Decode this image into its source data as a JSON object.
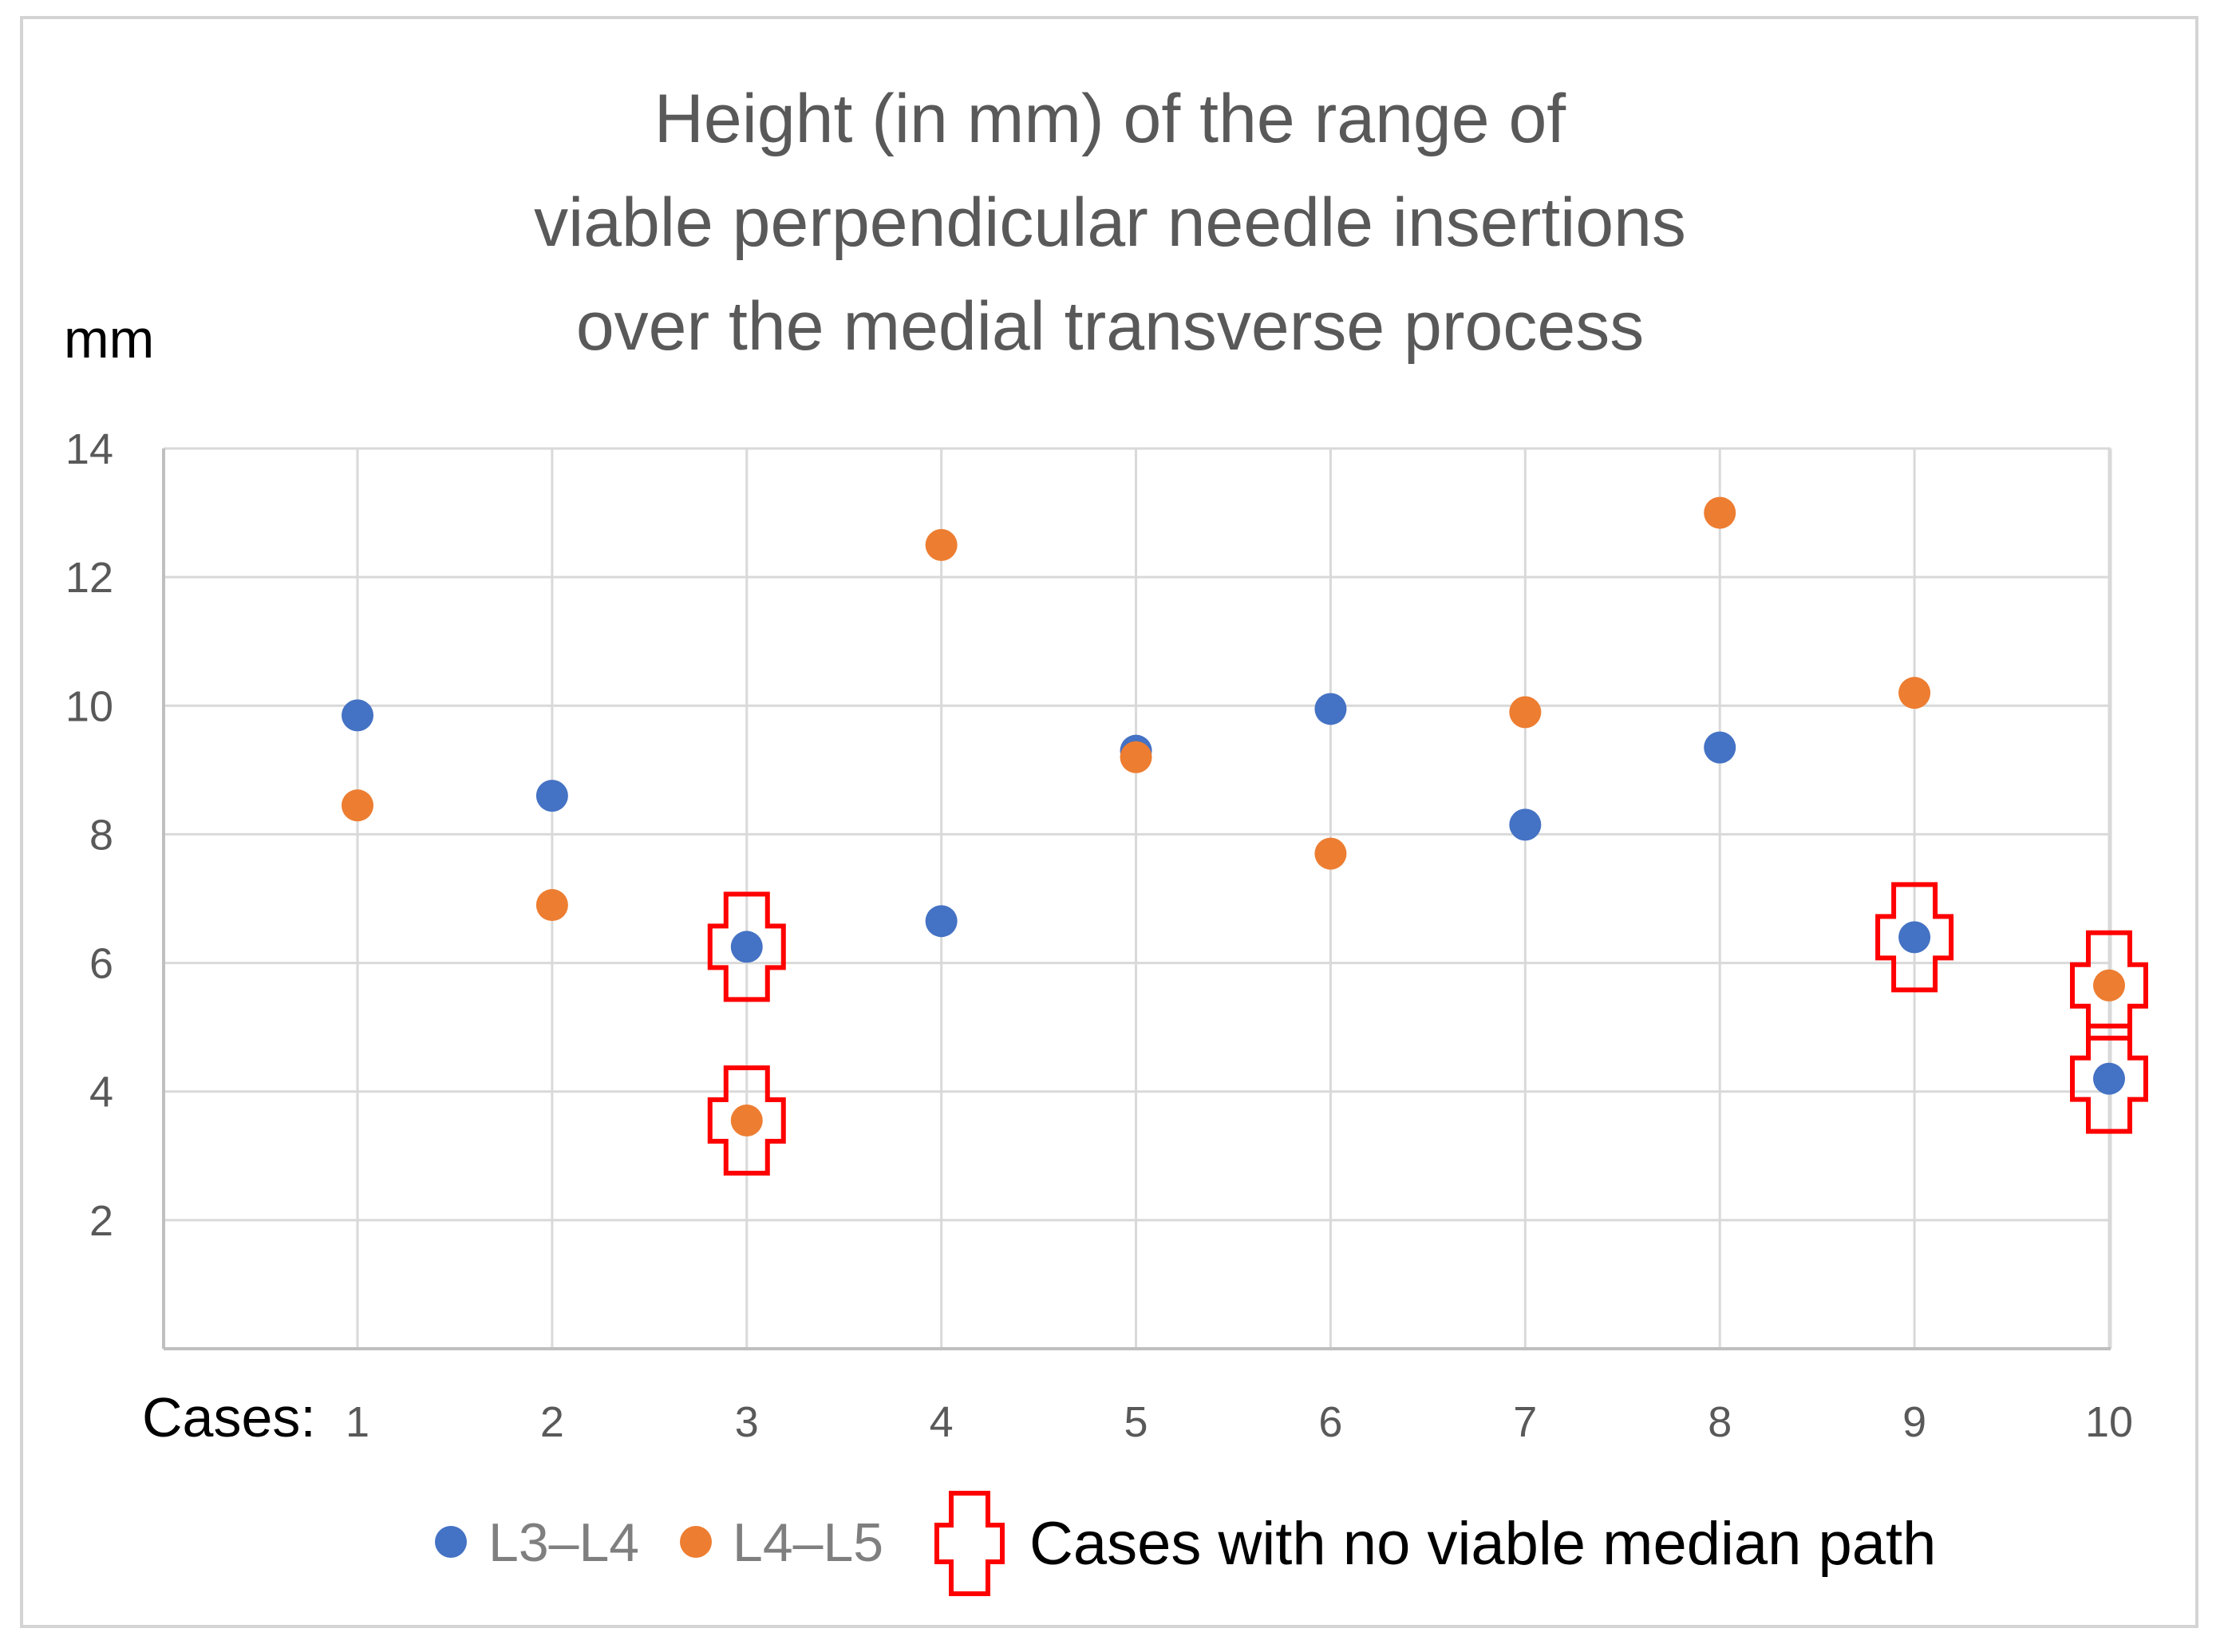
{
  "chart_data": {
    "type": "scatter",
    "title_lines": [
      "Height (in mm) of the range of",
      "viable perpendicular needle insertions",
      "over the medial transverse process"
    ],
    "ylabel": "mm",
    "xlabel": "Cases:",
    "ylim": [
      0,
      14
    ],
    "yticks": [
      2,
      4,
      6,
      8,
      10,
      12,
      14
    ],
    "categories": [
      "1",
      "2",
      "3",
      "4",
      "5",
      "6",
      "7",
      "8",
      "9",
      "10"
    ],
    "grid": true,
    "legend_position": "bottom",
    "series": [
      {
        "name": "L3–L4",
        "color": "#4472c4",
        "values": [
          9.85,
          8.6,
          6.25,
          6.65,
          9.3,
          9.95,
          8.15,
          9.35,
          6.4,
          4.2
        ]
      },
      {
        "name": "L4–L5",
        "color": "#ed7d31",
        "values": [
          8.45,
          6.9,
          3.55,
          12.5,
          9.2,
          7.7,
          9.9,
          13.0,
          10.2,
          5.65
        ]
      }
    ],
    "highlight": {
      "name": "Cases with no viable median path",
      "color": "#ff0000",
      "points": [
        {
          "case": "3",
          "series": "L3–L4"
        },
        {
          "case": "3",
          "series": "L4–L5"
        },
        {
          "case": "9",
          "series": "L3–L4"
        },
        {
          "case": "10",
          "series": "L4–L5"
        },
        {
          "case": "10",
          "series": "L3–L4"
        }
      ]
    }
  }
}
